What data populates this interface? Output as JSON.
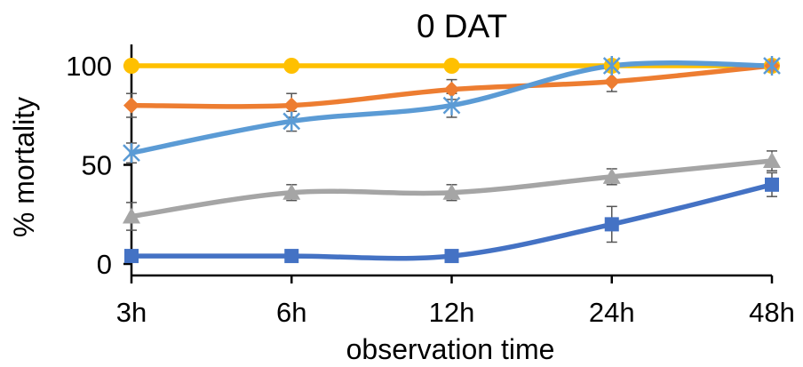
{
  "chart_data": {
    "type": "line",
    "title": "0 DAT",
    "xlabel": "observation time",
    "ylabel": "% mortality",
    "categories": [
      "3h",
      "6h",
      "12h",
      "24h",
      "48h"
    ],
    "ylim": [
      0,
      100
    ],
    "yticks": [
      0,
      50,
      100
    ],
    "smooth": true,
    "series": [
      {
        "color": "#FFC000",
        "marker": "circle",
        "values": [
          100,
          100,
          100,
          100,
          100
        ],
        "errors": [
          0,
          0,
          0,
          0,
          0
        ]
      },
      {
        "color": "#ED7D31",
        "marker": "diamond",
        "values": [
          80,
          80,
          88,
          92,
          100
        ],
        "errors": [
          6,
          6,
          5,
          5,
          0
        ]
      },
      {
        "color": "#5B9BD5",
        "marker": "asterisk",
        "values": [
          56,
          72,
          80,
          100,
          100
        ],
        "errors": [
          5,
          5,
          6,
          0,
          0
        ]
      },
      {
        "color": "#A5A5A5",
        "marker": "triangle",
        "values": [
          24,
          36,
          36,
          44,
          52
        ],
        "errors": [
          7,
          4,
          4,
          4,
          5
        ]
      },
      {
        "color": "#4472C4",
        "marker": "square",
        "values": [
          4,
          4,
          4,
          20,
          40
        ],
        "errors": [
          0,
          0,
          0,
          9,
          6
        ]
      }
    ]
  }
}
